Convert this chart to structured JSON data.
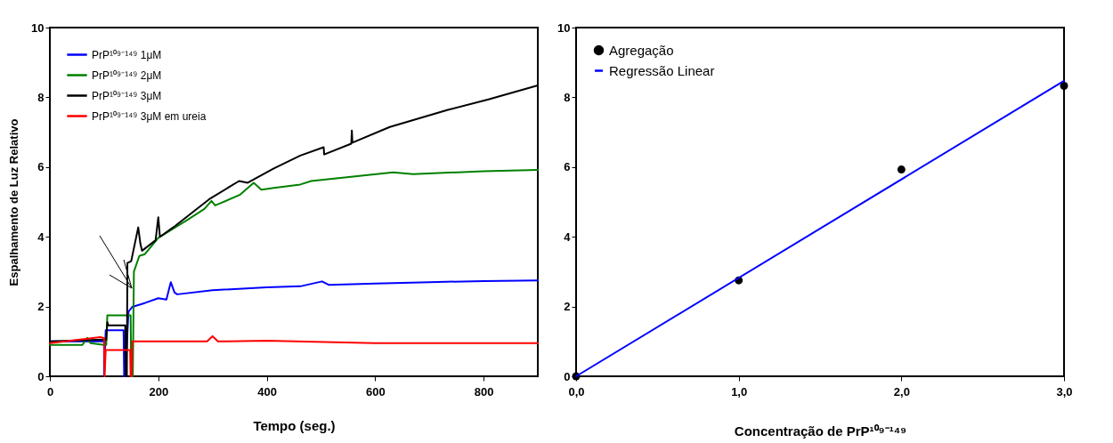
{
  "chart_data": [
    {
      "type": "line",
      "xlabel": "Tempo (seg.)",
      "ylabel": "Espalhamento de Luz Relativo",
      "xlim": [
        0,
        900
      ],
      "ylim": [
        0,
        10
      ],
      "xticks": [
        0,
        200,
        400,
        600,
        800
      ],
      "yticks": [
        0,
        2,
        4,
        6,
        8,
        10
      ],
      "legend": "top left",
      "series": [
        {
          "name": "PrP¹⁰⁹⁻¹⁴⁹ 1μM",
          "color": "#0000ff",
          "x": [
            0,
            100,
            100,
            103,
            136,
            137,
            139,
            145,
            152,
            175,
            200,
            215,
            223,
            230,
            235,
            300,
            400,
            462,
            502,
            515,
            600,
            700,
            800,
            900
          ],
          "values": [
            1.0,
            1.0,
            0,
            1.32,
            1.32,
            0,
            0,
            1.85,
            1.99,
            2.1,
            2.24,
            2.2,
            2.7,
            2.4,
            2.35,
            2.47,
            2.55,
            2.58,
            2.72,
            2.62,
            2.66,
            2.7,
            2.73,
            2.75
          ]
        },
        {
          "name": "PrP¹⁰⁹⁻¹⁴⁹ 2μM",
          "color": "#008000",
          "x": [
            0,
            60,
            69,
            75,
            100,
            104,
            106,
            149,
            150,
            153,
            155,
            165,
            175,
            200,
            250,
            285,
            298,
            305,
            350,
            376,
            390,
            413,
            462,
            482,
            633,
            670,
            800,
            900
          ],
          "values": [
            0.9,
            0.9,
            1.1,
            0.95,
            0.9,
            0.9,
            1.75,
            1.75,
            0,
            0,
            3.0,
            3.45,
            3.5,
            3.97,
            4.45,
            4.8,
            5.03,
            4.9,
            5.2,
            5.55,
            5.35,
            5.4,
            5.5,
            5.6,
            5.85,
            5.8,
            5.88,
            5.92
          ]
        },
        {
          "name": "PrP¹⁰⁹⁻¹⁴⁹ 3μM",
          "color": "#000000",
          "x": [
            0,
            100,
            104,
            106,
            108,
            139,
            140,
            142,
            143,
            150,
            163,
            167,
            170,
            195,
            200,
            203,
            230,
            296,
            349,
            365,
            413,
            462,
            505,
            506,
            556,
            557,
            558,
            627,
            734,
            809,
            900
          ],
          "values": [
            1.0,
            1.05,
            1.05,
            1.55,
            1.46,
            1.46,
            0,
            0,
            3.25,
            3.3,
            4.27,
            3.8,
            3.6,
            3.9,
            4.56,
            4.0,
            4.3,
            5.1,
            5.6,
            5.55,
            5.96,
            6.33,
            6.57,
            6.36,
            6.67,
            7.05,
            6.7,
            7.15,
            7.64,
            7.94,
            8.34
          ]
        },
        {
          "name": "PrP¹⁰⁹⁻¹⁴⁹ 3μM em ureia",
          "color": "#ff0000",
          "x": [
            0,
            93,
            100,
            101,
            103,
            148,
            149,
            151,
            152,
            200,
            250,
            290,
            300,
            310,
            400,
            600,
            900
          ],
          "values": [
            0.95,
            1.12,
            1.1,
            0,
            0.75,
            0.75,
            0,
            0,
            1.0,
            1.0,
            1.0,
            1.0,
            1.15,
            1.0,
            1.02,
            0.95,
            0.95
          ]
        }
      ]
    },
    {
      "type": "scatter",
      "xlabel": "Concentração de PrP¹⁰⁹⁻¹⁴⁹",
      "xlim": [
        0,
        3
      ],
      "ylim": [
        0,
        10
      ],
      "xticks": [
        {
          "value": 0,
          "label": "0,0"
        },
        {
          "value": 1,
          "label": "1,0"
        },
        {
          "value": 2,
          "label": "2,0"
        },
        {
          "value": 3,
          "label": "3,0"
        }
      ],
      "yticks": [
        0,
        2,
        4,
        6,
        8,
        10
      ],
      "legend": "top left",
      "series": [
        {
          "name": "Agregação",
          "color": "#000000",
          "marker": "circle",
          "x": [
            0,
            1,
            2,
            3
          ],
          "values": [
            0,
            2.75,
            5.93,
            8.33
          ]
        },
        {
          "name": "Regressão Linear",
          "type": "line",
          "marker": "none",
          "color": "#0000ff",
          "x": [
            0,
            3
          ],
          "values": [
            0,
            8.47
          ]
        }
      ]
    }
  ]
}
